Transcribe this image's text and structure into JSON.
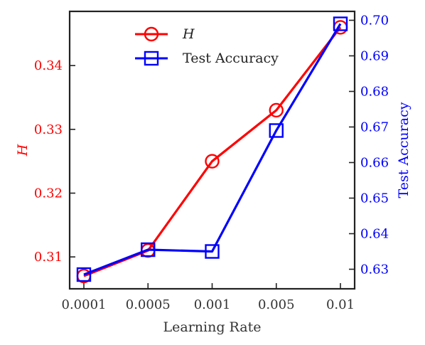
{
  "chart_data": {
    "type": "line",
    "categories": [
      "0.0001",
      "0.0005",
      "0.001",
      "0.005",
      "0.01"
    ],
    "xlabel": "Learning Rate",
    "series": [
      {
        "name": "H",
        "axis": "left",
        "marker": "circle",
        "color": "#ff0000",
        "values": [
          0.307,
          0.311,
          0.325,
          0.333,
          0.346
        ]
      },
      {
        "name": "Test Accuracy",
        "axis": "right",
        "marker": "square",
        "color": "#0000ff",
        "values": [
          0.6285,
          0.6355,
          0.635,
          0.669,
          0.699
        ]
      }
    ],
    "left_axis": {
      "label": "H",
      "color": "#ff0000",
      "ylim": [
        0.305,
        0.3485
      ],
      "ticks": [
        "0.31",
        "0.32",
        "0.33",
        "0.34"
      ]
    },
    "right_axis": {
      "label": "Test Accuracy",
      "color": "#0000ff",
      "ylim": [
        0.6245,
        0.7025
      ],
      "ticks": [
        "0.63",
        "0.64",
        "0.65",
        "0.66",
        "0.67",
        "0.68",
        "0.69",
        "0.70"
      ]
    },
    "legend": {
      "placement": "top-center",
      "entries": [
        "H",
        "Test Accuracy"
      ]
    },
    "grid": false
  }
}
